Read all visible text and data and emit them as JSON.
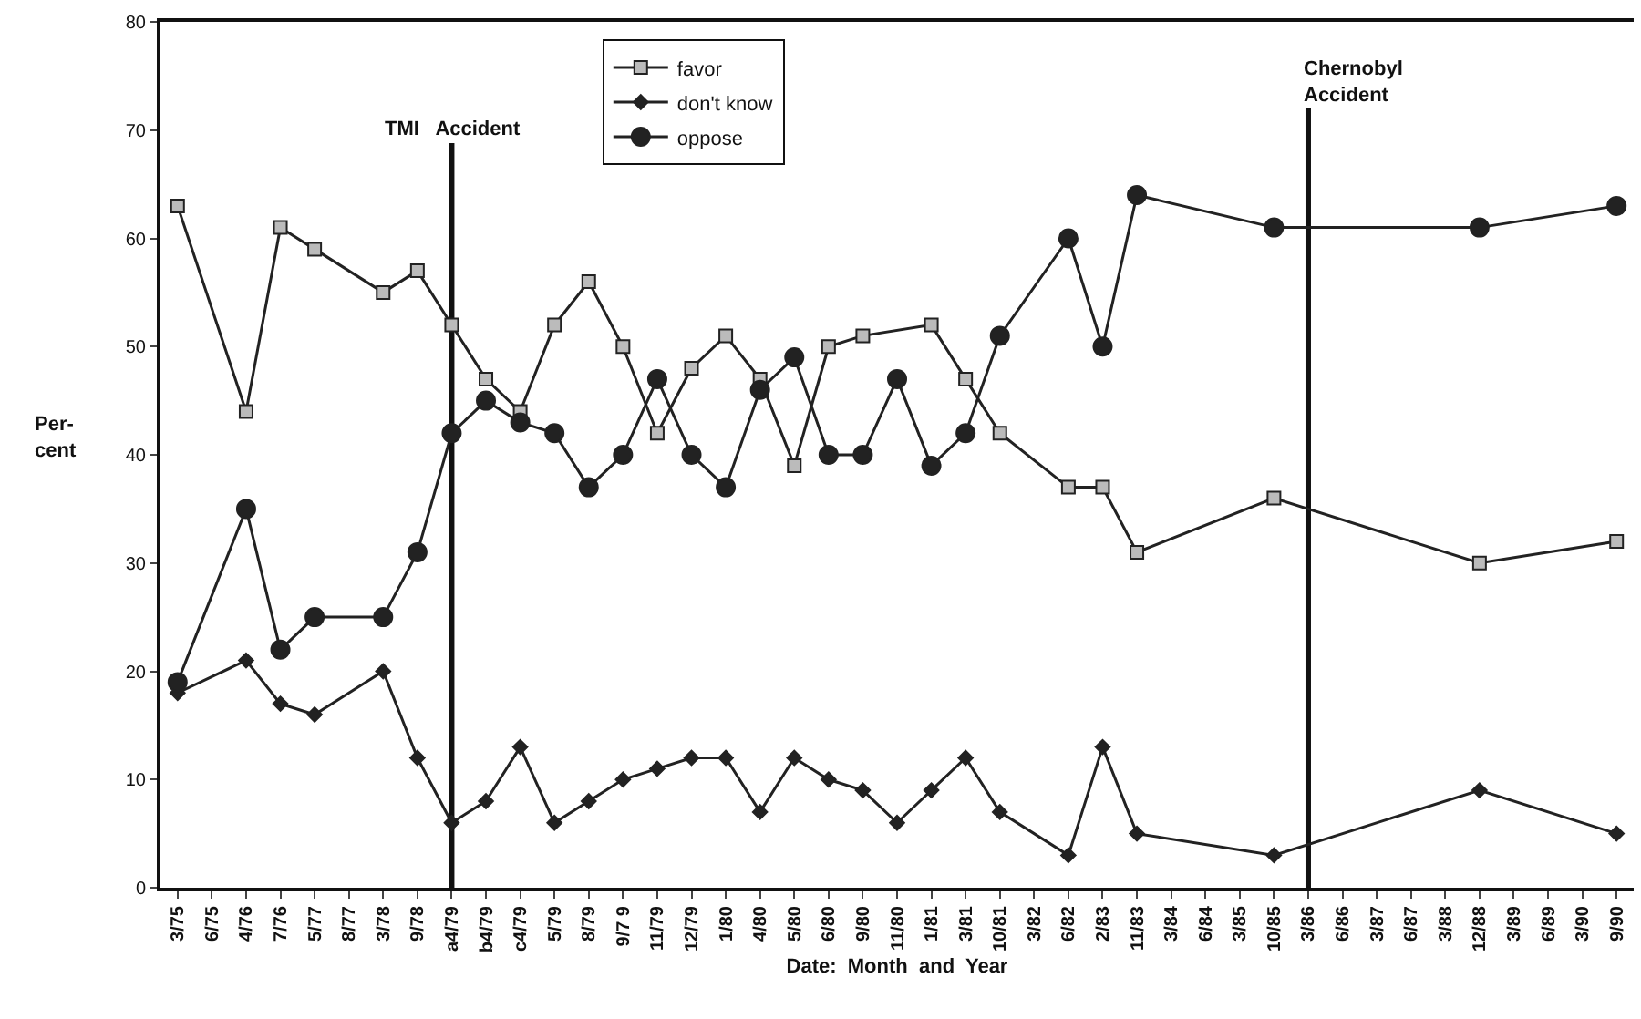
{
  "chart_data": {
    "type": "line",
    "xlabel": "Date:  Month  and  Year",
    "ylabel": "Per-\ncent",
    "categories": [
      "3/75",
      "6/75",
      "4/76",
      "7/76",
      "5/77",
      "8/77",
      "3/78",
      "9/78",
      "a4/79",
      "b4/79",
      "c4/79",
      "5/79",
      "8/79",
      "9/7 9",
      "11/79",
      "12/79",
      "1/80",
      "4/80",
      "5/80",
      "6/80",
      "9/80",
      "11/80",
      "1/81",
      "3/81",
      "10/81",
      "3/82",
      "6/82",
      "2/83",
      "11/83",
      "3/84",
      "6/84",
      "3/85",
      "10/85",
      "3/86",
      "6/86",
      "3/87",
      "6/87",
      "3/88",
      "12/88",
      "3/89",
      "6/89",
      "3/90",
      "9/90"
    ],
    "series": [
      {
        "name": "favor",
        "color": "#222222",
        "marker": "square",
        "values": [
          63,
          null,
          44,
          61,
          59,
          null,
          55,
          57,
          52,
          47,
          44,
          52,
          56,
          50,
          42,
          48,
          51,
          47,
          39,
          50,
          51,
          null,
          52,
          47,
          42,
          null,
          37,
          37,
          31,
          null,
          null,
          null,
          36,
          null,
          null,
          null,
          null,
          null,
          30,
          null,
          null,
          null,
          32
        ]
      },
      {
        "name": "don't know",
        "color": "#222222",
        "marker": "diamond",
        "values": [
          18,
          null,
          21,
          17,
          16,
          null,
          20,
          12,
          6,
          8,
          13,
          6,
          8,
          10,
          11,
          12,
          12,
          7,
          12,
          10,
          9,
          6,
          9,
          12,
          7,
          null,
          3,
          13,
          5,
          null,
          null,
          null,
          3,
          null,
          null,
          null,
          null,
          null,
          9,
          null,
          null,
          null,
          5
        ]
      },
      {
        "name": "oppose",
        "color": "#222222",
        "marker": "circle",
        "values": [
          19,
          null,
          35,
          22,
          25,
          null,
          25,
          31,
          42,
          45,
          43,
          42,
          37,
          40,
          47,
          40,
          37,
          46,
          49,
          40,
          40,
          47,
          39,
          42,
          51,
          null,
          60,
          50,
          64,
          null,
          null,
          null,
          61,
          null,
          null,
          null,
          null,
          null,
          61,
          null,
          null,
          null,
          63
        ]
      }
    ],
    "ylim": [
      0,
      80
    ],
    "yticks": [
      0,
      10,
      20,
      30,
      40,
      50,
      60,
      70,
      80
    ],
    "ref_lines": [
      {
        "axis": "x",
        "value": "a4/79",
        "label": "TMI   Accident",
        "color": "#111111"
      },
      {
        "axis": "x",
        "value": "3/86",
        "label": "Chernobyl\nAccident",
        "color": "#111111"
      }
    ],
    "legend": "top",
    "grid": false,
    "line_style": "solid"
  }
}
